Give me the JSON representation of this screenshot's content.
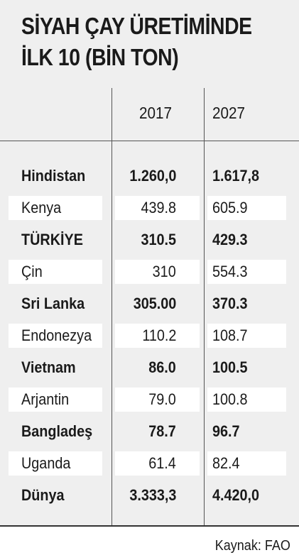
{
  "chart_data": {
    "type": "table",
    "title_line1": "SİYAH ÇAY ÜRETİMİNDE",
    "title_line2": "İLK 10 (BİN TON)",
    "columns": [
      "2017",
      "2027"
    ],
    "rows": [
      {
        "name": "Hindistan",
        "v2017": "1.260,0",
        "v2027": "1.617,8",
        "bold": true
      },
      {
        "name": "Kenya",
        "v2017": "439.8",
        "v2027": "605.9",
        "bold": false
      },
      {
        "name": "TÜRKİYE",
        "v2017": "310.5",
        "v2027": "429.3",
        "bold": true
      },
      {
        "name": "Çin",
        "v2017": "310",
        "v2027": "554.3",
        "bold": false
      },
      {
        "name": "Sri Lanka",
        "v2017": "305.00",
        "v2027": "370.3",
        "bold": true
      },
      {
        "name": "Endonezya",
        "v2017": "110.2",
        "v2027": "108.7",
        "bold": false
      },
      {
        "name": "Vietnam",
        "v2017": "86.0",
        "v2027": "100.5",
        "bold": true
      },
      {
        "name": "Arjantin",
        "v2017": "79.0",
        "v2027": "100.8",
        "bold": false
      },
      {
        "name": "Bangladeş",
        "v2017": "78.7",
        "v2027": "96.7",
        "bold": true
      },
      {
        "name": "Uganda",
        "v2017": "61.4",
        "v2027": "82.4",
        "bold": false
      },
      {
        "name": "Dünya",
        "v2017": "3.333,3",
        "v2027": "4.420,0",
        "bold": true
      }
    ],
    "source": "Kaynak: FAO"
  },
  "colors": {
    "background": "#efefef",
    "row_highlight": "#ffffff",
    "text": "#1a1a1a",
    "rule": "#333333"
  }
}
